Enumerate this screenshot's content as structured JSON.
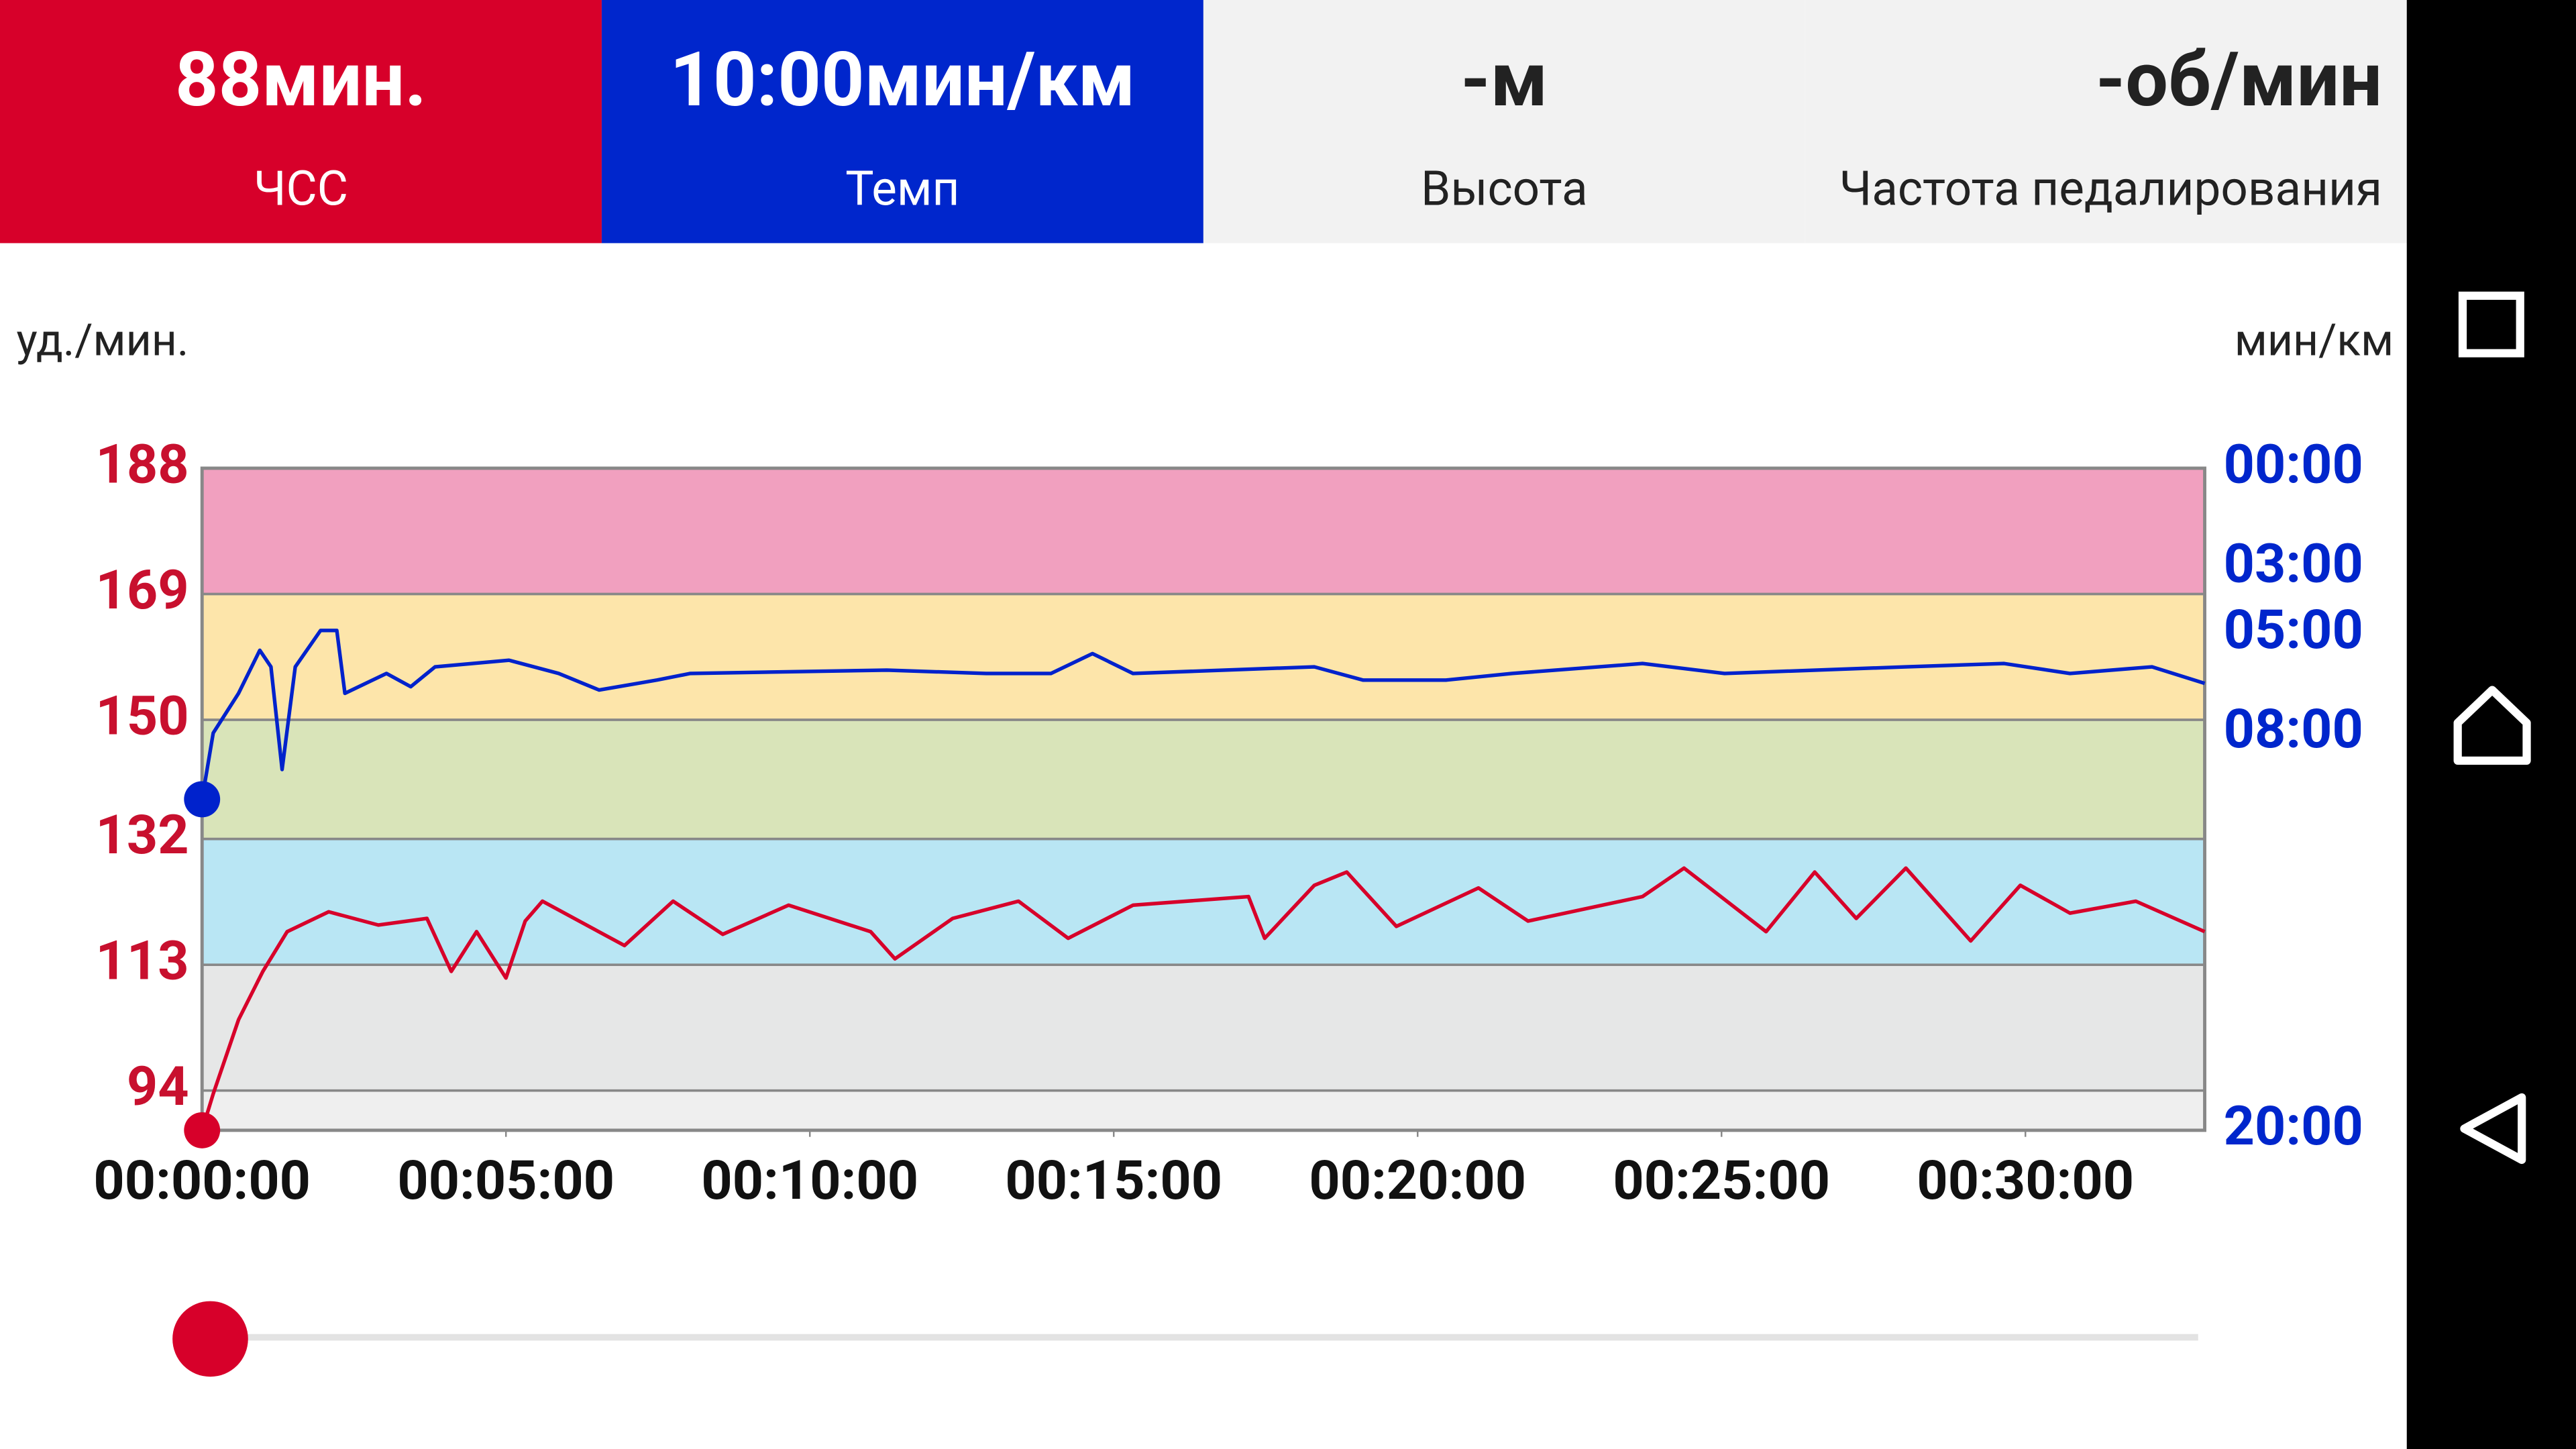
{
  "header": {
    "tiles": [
      {
        "value": "88мин.",
        "label": "ЧСС",
        "color": "#d7002a",
        "text_color": "#ffffff"
      },
      {
        "value": "10:00мин/км",
        "label": "Темп",
        "color": "#0026cc",
        "text_color": "#ffffff"
      },
      {
        "value": "-м",
        "label": "Высота",
        "color": "#f2f2f2",
        "text_color": "#222222"
      },
      {
        "value": "-об/мин",
        "label": "Частота педалирования",
        "color": "#f2f2f2",
        "text_color": "#222222"
      }
    ]
  },
  "chart_data": {
    "type": "line",
    "y_label": "уд./мин.",
    "y2_label": "мин/км",
    "xlim": [
      0,
      1977
    ],
    "xticks": [
      {
        "value": 0,
        "label": "00:00:00"
      },
      {
        "value": 300,
        "label": "00:05:00"
      },
      {
        "value": 600,
        "label": "00:10:00"
      },
      {
        "value": 900,
        "label": "00:15:00"
      },
      {
        "value": 1200,
        "label": "00:20:00"
      },
      {
        "value": 1500,
        "label": "00:25:00"
      },
      {
        "value": 1800,
        "label": "00:30:00"
      }
    ],
    "ylim": [
      88,
      188
    ],
    "yticks": [
      94,
      113,
      132,
      150,
      169,
      188
    ],
    "y2lim": [
      0,
      20
    ],
    "y2ticks": [
      {
        "value": 0,
        "label": "00:00"
      },
      {
        "value": 3,
        "label": "03:00"
      },
      {
        "value": 5,
        "label": "05:00"
      },
      {
        "value": 8,
        "label": "08:00"
      },
      {
        "value": 20,
        "label": "20:00"
      }
    ],
    "zone_colors": [
      "#efefef",
      "#e6e7e7",
      "#b9e6f4",
      "#d9e4b9",
      "#fde5aa",
      "#f1a0bf"
    ],
    "series": [
      {
        "name": "ЧСС",
        "color": "#d7002a",
        "axis": "y",
        "x": [
          0,
          11,
          36,
          60,
          84,
          125,
          174,
          222,
          246,
          271,
          300,
          319,
          336,
          417,
          465,
          514,
          579,
          660,
          684,
          741,
          806,
          855,
          919,
          1033,
          1049,
          1098,
          1130,
          1179,
          1260,
          1309,
          1422,
          1463,
          1544,
          1592,
          1633,
          1682,
          1746,
          1795,
          1844,
          1909,
          1977
        ],
        "values": [
          88,
          93.5,
          104.7,
          112,
          118,
          121,
          119,
          120,
          112,
          118,
          111,
          119.6,
          122.6,
          115.9,
          122.6,
          117.6,
          122,
          118,
          113.9,
          120,
          122.6,
          117,
          122,
          123.3,
          117,
          125,
          127,
          118.8,
          124.6,
          119.6,
          123.3,
          127.6,
          118,
          127,
          120,
          127.6,
          116.6,
          125,
          120.8,
          122.6,
          118
        ]
      },
      {
        "name": "Темп",
        "color": "#0022cc",
        "axis": "y2",
        "x": [
          0,
          11,
          36,
          57,
          68,
          79,
          92,
          117,
          133,
          141,
          182,
          206,
          230,
          303,
          352,
          392,
          449,
          482,
          676,
          774,
          838,
          879,
          919,
          1098,
          1146,
          1228,
          1293,
          1422,
          1503,
          1682,
          1779,
          1844,
          1925,
          1977
        ],
        "values": [
          10,
          8,
          6.8,
          5.5,
          6,
          9.1,
          6,
          4.9,
          4.9,
          6.8,
          6.2,
          6.6,
          6,
          5.8,
          6.2,
          6.7,
          6.4,
          6.2,
          6.1,
          6.2,
          6.2,
          5.6,
          6.2,
          6,
          6.4,
          6.4,
          6.2,
          5.9,
          6.2,
          6,
          5.9,
          6.2,
          6,
          6.5
        ]
      }
    ]
  }
}
